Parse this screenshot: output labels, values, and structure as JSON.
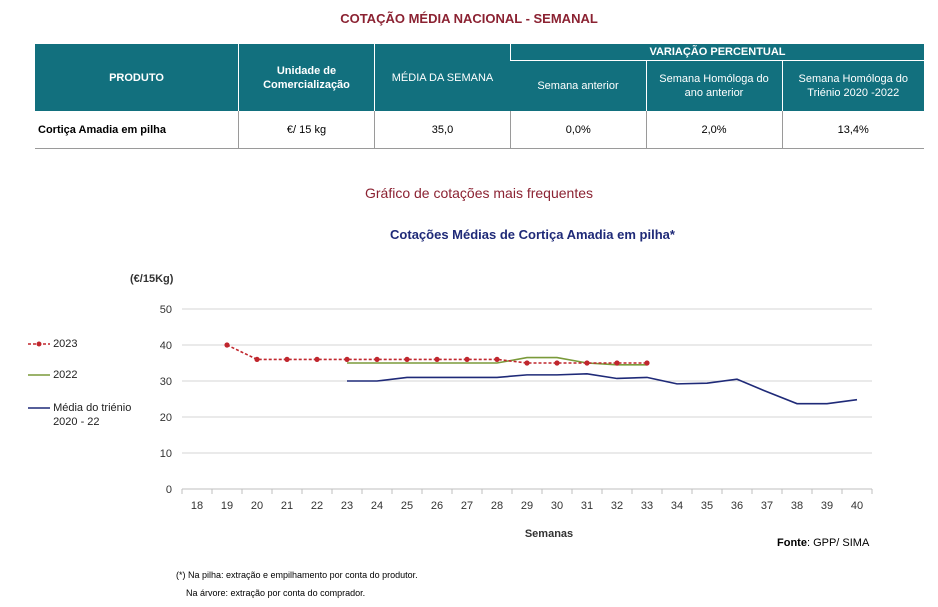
{
  "page_title": "COTAÇÃO MÉDIA NACIONAL - SEMANAL",
  "table": {
    "headers": {
      "produto": "PRODUTO",
      "unidade": "Unidade de Comercialização",
      "media": "MÉDIA DA SEMANA",
      "variacao": "VARIAÇÃO PERCENTUAL",
      "semana_anterior": "Semana anterior",
      "homologa_ano": "Semana Homóloga do ano anterior",
      "homologa_trienio": "Semana Homóloga do Triénio 2020 -2022"
    },
    "row": {
      "produto": "Cortiça Amadia em pilha",
      "unidade": "€/ 15 kg",
      "media": "35,0",
      "semana_anterior": "0,0%",
      "homologa_ano": "2,0%",
      "homologa_trienio": "13,4%"
    }
  },
  "section_title": "Gráfico de cotações mais frequentes",
  "chart_data": {
    "type": "line",
    "title": "Cotações Médias de Cortiça Amadia em pilha*",
    "ylabel": "(€/15Kg)",
    "xlabel": "Semanas",
    "ylim": [
      0,
      50
    ],
    "yticks": [
      0,
      10,
      20,
      30,
      40,
      50
    ],
    "x": [
      18,
      19,
      20,
      21,
      22,
      23,
      24,
      25,
      26,
      27,
      28,
      29,
      30,
      31,
      32,
      33,
      34,
      35,
      36,
      37,
      38,
      39,
      40
    ],
    "grid": true,
    "legend_position": "left",
    "series": [
      {
        "name": "2023",
        "color": "#c0262d",
        "style": "dashed-markers",
        "points": [
          [
            19,
            40
          ],
          [
            20,
            36
          ],
          [
            21,
            36
          ],
          [
            22,
            36
          ],
          [
            23,
            36
          ],
          [
            24,
            36
          ],
          [
            25,
            36
          ],
          [
            26,
            36
          ],
          [
            27,
            36
          ],
          [
            28,
            36
          ],
          [
            29,
            35
          ],
          [
            30,
            35
          ],
          [
            31,
            35
          ],
          [
            32,
            35
          ],
          [
            33,
            35
          ]
        ]
      },
      {
        "name": "2022",
        "color": "#7a9a3a",
        "style": "solid",
        "points": [
          [
            23,
            35
          ],
          [
            24,
            35
          ],
          [
            25,
            35
          ],
          [
            26,
            35
          ],
          [
            27,
            35
          ],
          [
            28,
            35
          ],
          [
            29,
            36.5
          ],
          [
            30,
            36.5
          ],
          [
            31,
            35
          ],
          [
            32,
            34.5
          ],
          [
            33,
            34.5
          ]
        ]
      },
      {
        "name": "Média do triénio 2020 - 22",
        "color": "#1f2a78",
        "style": "solid",
        "points": [
          [
            23,
            30
          ],
          [
            24,
            30
          ],
          [
            25,
            31
          ],
          [
            26,
            31
          ],
          [
            27,
            31
          ],
          [
            28,
            31
          ],
          [
            29,
            31.7
          ],
          [
            30,
            31.7
          ],
          [
            31,
            32
          ],
          [
            32,
            30.7
          ],
          [
            33,
            31
          ],
          [
            34,
            29.2
          ],
          [
            35,
            29.4
          ],
          [
            36,
            30.5
          ],
          [
            37,
            27
          ],
          [
            38,
            23.7
          ],
          [
            39,
            23.7
          ],
          [
            40,
            24.8
          ]
        ]
      }
    ]
  },
  "source_label": "Fonte",
  "source_value": ": GPP/ SIMA",
  "footnotes": {
    "line1": "(*) Na pilha: extração e empilhamento por conta do produtor.",
    "line2": "Na árvore: extração por conta do comprador."
  }
}
